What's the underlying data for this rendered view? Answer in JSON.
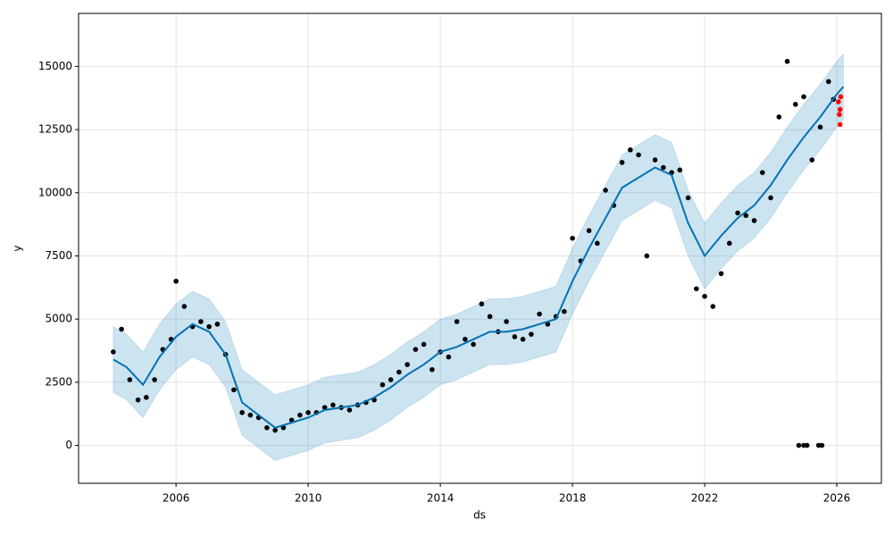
{
  "chart_data": {
    "type": "line",
    "xlabel": "ds",
    "ylabel": "y",
    "xlim": [
      2003.05,
      2027.35
    ],
    "ylim": [
      -1500,
      17100
    ],
    "xticks": [
      2006,
      2010,
      2014,
      2018,
      2022,
      2026
    ],
    "yticks": [
      0,
      2500,
      5000,
      7500,
      10000,
      12500,
      15000
    ],
    "grid": true,
    "series": [
      {
        "style": "band",
        "color": "#0072B2",
        "x": [
          2004.1,
          2004.5,
          2005,
          2005.5,
          2006,
          2006.5,
          2007,
          2007.5,
          2008,
          2008.5,
          2009,
          2009.5,
          2010,
          2010.5,
          2011,
          2011.5,
          2012,
          2012.5,
          2013,
          2013.5,
          2014,
          2014.5,
          2015,
          2015.5,
          2016,
          2016.5,
          2017,
          2017.5,
          2018,
          2018.5,
          2019,
          2019.5,
          2020,
          2020.5,
          2021,
          2021.5,
          2022,
          2022.5,
          2023,
          2023.5,
          2024,
          2024.5,
          2025,
          2025.5,
          2026,
          2026.2
        ],
        "lower": [
          2100,
          1800,
          1100,
          2200,
          3000,
          3500,
          3200,
          2300,
          400,
          -100,
          -600,
          -400,
          -200,
          100,
          200,
          300,
          600,
          1000,
          1500,
          1900,
          2400,
          2600,
          2900,
          3200,
          3200,
          3300,
          3500,
          3700,
          5200,
          6500,
          7700,
          8900,
          9300,
          9700,
          9400,
          7500,
          6200,
          7000,
          7700,
          8200,
          9000,
          10000,
          10900,
          11700,
          12600,
          12900
        ],
        "upper": [
          4700,
          4400,
          3700,
          4800,
          5600,
          6100,
          5800,
          4900,
          3000,
          2500,
          2000,
          2200,
          2400,
          2700,
          2800,
          2900,
          3200,
          3600,
          4100,
          4500,
          5000,
          5200,
          5500,
          5800,
          5800,
          5900,
          6100,
          6300,
          7800,
          9100,
          10300,
          11500,
          11900,
          12300,
          12000,
          10100,
          8800,
          9600,
          10300,
          10800,
          11600,
          12600,
          13500,
          14300,
          15200,
          15500
        ]
      },
      {
        "style": "scatter",
        "color": "#000000",
        "x": [
          2004.1,
          2004.35,
          2004.6,
          2004.85,
          2005.1,
          2005.35,
          2005.6,
          2005.85,
          2006.0,
          2006.25,
          2006.5,
          2006.75,
          2007.0,
          2007.25,
          2007.5,
          2007.75,
          2008.0,
          2008.25,
          2008.5,
          2008.75,
          2009.0,
          2009.25,
          2009.5,
          2009.75,
          2010.0,
          2010.25,
          2010.5,
          2010.75,
          2011.0,
          2011.25,
          2011.5,
          2011.75,
          2012.0,
          2012.25,
          2012.5,
          2012.75,
          2013.0,
          2013.25,
          2013.5,
          2013.75,
          2014.0,
          2014.25,
          2014.5,
          2014.75,
          2015.0,
          2015.25,
          2015.5,
          2015.75,
          2016.0,
          2016.25,
          2016.5,
          2016.75,
          2017.0,
          2017.25,
          2017.5,
          2017.75,
          2018.0,
          2018.25,
          2018.5,
          2018.75,
          2019.0,
          2019.25,
          2019.5,
          2019.75,
          2020.0,
          2020.25,
          2020.5,
          2020.75,
          2021.0,
          2021.25,
          2021.5,
          2021.75,
          2022.0,
          2022.25,
          2022.5,
          2022.75,
          2023.0,
          2023.25,
          2023.5,
          2023.75,
          2024.0,
          2024.25,
          2024.5,
          2024.75,
          2025.0,
          2025.25,
          2025.5,
          2025.75,
          2025.9,
          2024.85,
          2025.0,
          2025.1,
          2025.45,
          2025.55
        ],
        "values": [
          3700,
          4600,
          2600,
          1800,
          1900,
          2600,
          3800,
          4200,
          6500,
          5500,
          4700,
          4900,
          4700,
          4800,
          3600,
          2200,
          1300,
          1200,
          1100,
          700,
          600,
          700,
          1000,
          1200,
          1300,
          1300,
          1500,
          1600,
          1500,
          1400,
          1600,
          1700,
          1800,
          2400,
          2600,
          2900,
          3200,
          3800,
          4000,
          3000,
          3700,
          3500,
          4900,
          4200,
          4000,
          5600,
          5100,
          4500,
          4900,
          4300,
          4200,
          4400,
          5200,
          4800,
          5100,
          5300,
          8200,
          7300,
          8500,
          8000,
          10100,
          9500,
          11200,
          11700,
          11500,
          7500,
          11300,
          11000,
          10800,
          10900,
          9800,
          6200,
          5900,
          5500,
          6800,
          8000,
          9200,
          9100,
          8900,
          10800,
          9800,
          13000,
          15200,
          13500,
          13800,
          11300,
          12600,
          14400,
          13700,
          0,
          0,
          0,
          0,
          0
        ]
      },
      {
        "style": "line",
        "color": "#0072B2",
        "x": [
          2004.1,
          2004.5,
          2005,
          2005.5,
          2006,
          2006.5,
          2007,
          2007.5,
          2008,
          2008.5,
          2009,
          2009.5,
          2010,
          2010.5,
          2011,
          2011.5,
          2012,
          2012.5,
          2013,
          2013.5,
          2014,
          2014.5,
          2015,
          2015.5,
          2016,
          2016.5,
          2017,
          2017.5,
          2018,
          2018.5,
          2019,
          2019.5,
          2020,
          2020.5,
          2021,
          2021.5,
          2022,
          2022.5,
          2023,
          2023.5,
          2024,
          2024.5,
          2025,
          2025.5,
          2026,
          2026.2
        ],
        "values": [
          3400,
          3100,
          2400,
          3500,
          4300,
          4800,
          4500,
          3600,
          1700,
          1200,
          700,
          900,
          1100,
          1400,
          1500,
          1600,
          1900,
          2300,
          2800,
          3200,
          3700,
          3900,
          4200,
          4500,
          4500,
          4600,
          4800,
          5000,
          6500,
          7800,
          9000,
          10200,
          10600,
          11000,
          10700,
          8800,
          7500,
          8300,
          9000,
          9500,
          10300,
          11300,
          12200,
          13000,
          13900,
          14200
        ]
      },
      {
        "style": "scatter",
        "color": "#ff0000",
        "x": [
          2026.05,
          2026.08,
          2026.1,
          2026.12,
          2026.1
        ],
        "values": [
          13600,
          13100,
          12700,
          13800,
          13300
        ]
      }
    ]
  }
}
